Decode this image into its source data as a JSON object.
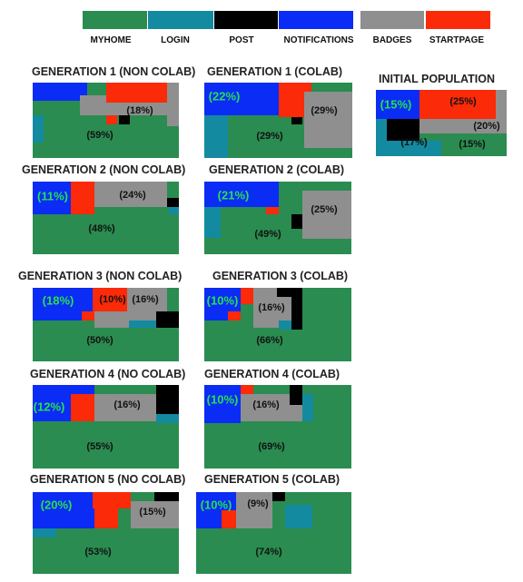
{
  "legend": {
    "categories": [
      {
        "label": "MYHOME",
        "color": "#2a8c50"
      },
      {
        "label": "LOGIN",
        "color": "#138aa0"
      },
      {
        "label": "POST",
        "color": "#000000"
      },
      {
        "label": "NOTIFICATIONS",
        "color": "#0a2cf5"
      },
      {
        "label": "BADGES",
        "color": "#8f8f8f"
      },
      {
        "label": "STARTPAGE",
        "color": "#fb2a08"
      }
    ]
  },
  "chart_data": [
    {
      "type": "treemap",
      "title": "INITIAL POPULATION",
      "labels": [
        {
          "category": "NOTIFICATIONS",
          "text": "(15%)"
        },
        {
          "category": "STARTPAGE",
          "text": "(25%)"
        },
        {
          "category": "BADGES",
          "text": "(20%)"
        },
        {
          "category": "LOGIN",
          "text": "(17%)"
        },
        {
          "category": "MYHOME",
          "text": "(15%)"
        }
      ]
    },
    {
      "type": "treemap",
      "title": "GENERATION 1 (NON COLAB)",
      "labels": [
        {
          "category": "BADGES",
          "text": "(18%)"
        },
        {
          "category": "MYHOME",
          "text": "(59%)"
        }
      ]
    },
    {
      "type": "treemap",
      "title": "GENERATION 1 (COLAB)",
      "labels": [
        {
          "category": "NOTIFICATIONS",
          "text": "(22%)"
        },
        {
          "category": "BADGES",
          "text": "(29%)"
        },
        {
          "category": "MYHOME",
          "text": "(29%)"
        }
      ]
    },
    {
      "type": "treemap",
      "title": "GENERATION 2 (NON COLAB)",
      "labels": [
        {
          "category": "NOTIFICATIONS",
          "text": "(11%)"
        },
        {
          "category": "BADGES",
          "text": "(24%)"
        },
        {
          "category": "MYHOME",
          "text": "(48%)"
        }
      ]
    },
    {
      "type": "treemap",
      "title": "GENERATION 2 (COLAB)",
      "labels": [
        {
          "category": "NOTIFICATIONS",
          "text": "(21%)"
        },
        {
          "category": "BADGES",
          "text": "(25%)"
        },
        {
          "category": "MYHOME",
          "text": "(49%)"
        }
      ]
    },
    {
      "type": "treemap",
      "title": "GENERATION 3 (NON COLAB)",
      "labels": [
        {
          "category": "NOTIFICATIONS",
          "text": "(18%)"
        },
        {
          "category": "STARTPAGE",
          "text": "(10%)"
        },
        {
          "category": "BADGES",
          "text": "(16%)"
        },
        {
          "category": "MYHOME",
          "text": "(50%)"
        }
      ]
    },
    {
      "type": "treemap",
      "title": "GENERATION 3 (COLAB)",
      "labels": [
        {
          "category": "NOTIFICATIONS",
          "text": "(10%)"
        },
        {
          "category": "BADGES",
          "text": "(16%)"
        },
        {
          "category": "MYHOME",
          "text": "(66%)"
        }
      ]
    },
    {
      "type": "treemap",
      "title": "GENERATION 4 (NO COLAB)",
      "labels": [
        {
          "category": "NOTIFICATIONS",
          "text": "(12%)"
        },
        {
          "category": "BADGES",
          "text": "(16%)"
        },
        {
          "category": "MYHOME",
          "text": "(55%)"
        }
      ]
    },
    {
      "type": "treemap",
      "title": "GENERATION 4 (COLAB)",
      "labels": [
        {
          "category": "NOTIFICATIONS",
          "text": "(10%)"
        },
        {
          "category": "BADGES",
          "text": "(16%)"
        },
        {
          "category": "MYHOME",
          "text": "(69%)"
        }
      ]
    },
    {
      "type": "treemap",
      "title": "GENERATION 5 (NO COLAB)",
      "labels": [
        {
          "category": "NOTIFICATIONS",
          "text": "(20%)"
        },
        {
          "category": "BADGES",
          "text": "(15%)"
        },
        {
          "category": "MYHOME",
          "text": "(53%)"
        }
      ]
    },
    {
      "type": "treemap",
      "title": "GENERATION 5 (COLAB)",
      "labels": [
        {
          "category": "NOTIFICATIONS",
          "text": "(10%)"
        },
        {
          "category": "BADGES",
          "text": "(9%)"
        },
        {
          "category": "MYHOME",
          "text": "(74%)"
        }
      ]
    }
  ]
}
